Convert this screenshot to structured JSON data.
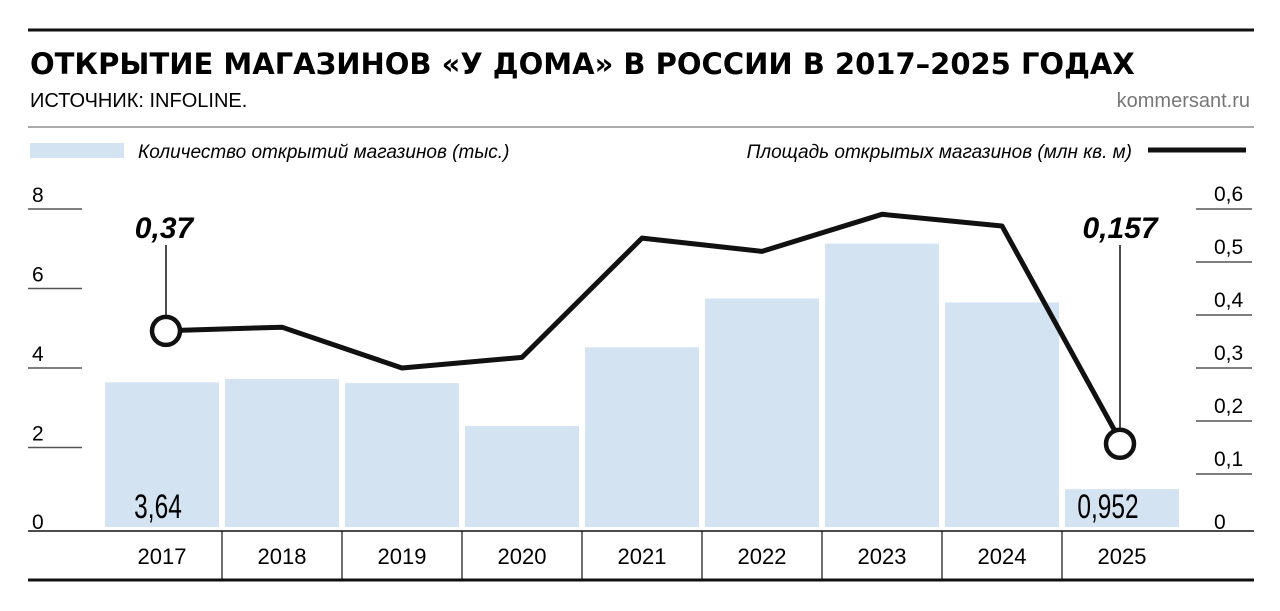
{
  "title": "ОТКРЫТИЕ МАГАЗИНОВ «У ДОМА» В РОССИИ В 2017–2025 ГОДАХ",
  "source": "ИСТОЧНИК: INFOLINE.",
  "brand": "kommersant.ru",
  "chart_data": {
    "type": "bar+line",
    "categories": [
      "2017",
      "2018",
      "2019",
      "2020",
      "2021",
      "2022",
      "2023",
      "2024",
      "2025"
    ],
    "series": [
      {
        "name": "Количество открытий магазинов (тыс.)",
        "type": "bar",
        "axis": "left",
        "color": "#d3e3f2",
        "values": [
          3.64,
          3.72,
          3.62,
          2.54,
          4.52,
          5.75,
          7.13,
          5.65,
          0.952
        ]
      },
      {
        "name": "Площадь открытых магазинов (млн кв. м)",
        "type": "line",
        "axis": "right",
        "color": "#111111",
        "values": [
          0.37,
          0.377,
          0.3,
          0.32,
          0.545,
          0.52,
          0.59,
          0.568,
          0.157
        ]
      }
    ],
    "left_axis": {
      "ylim": [
        0,
        8
      ],
      "ticks": [
        "0",
        "2",
        "4",
        "6",
        "8"
      ]
    },
    "right_axis": {
      "ylim": [
        0,
        0.6
      ],
      "ticks": [
        "0",
        "0,1",
        "0,2",
        "0,3",
        "0,4",
        "0,5",
        "0,6"
      ]
    },
    "annotations": {
      "bar_first": "3,64",
      "bar_last": "0,952",
      "line_first": "0,37",
      "line_last": "0,157"
    },
    "legend_placement": "top"
  }
}
